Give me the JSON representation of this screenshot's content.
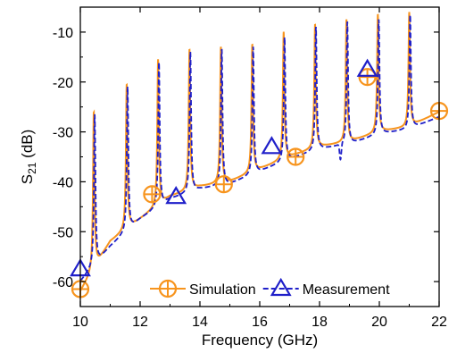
{
  "chart_data": {
    "type": "line",
    "title": "",
    "xlabel": "Frequency (GHz)",
    "ylabel_main": "S",
    "ylabel_sub": "21",
    "ylabel_unit": " (dB)",
    "xlim": [
      10,
      22
    ],
    "ylim": [
      -65,
      -5
    ],
    "xticks": [
      10,
      12,
      14,
      16,
      18,
      20,
      22
    ],
    "yticks": [
      -60,
      -50,
      -40,
      -30,
      -20,
      -10
    ],
    "xtick_labels": [
      "10",
      "12",
      "14",
      "16",
      "18",
      "20",
      "22"
    ],
    "ytick_labels": [
      "-60",
      "-50",
      "-40",
      "-30",
      "-20",
      "-10"
    ],
    "grid": false,
    "legend_position": "bottom-right",
    "series": [
      {
        "name": "Simulation",
        "color": "#f7941d",
        "line_style": "solid",
        "marker": "circle-plus",
        "curve_params": {
          "base_points": [
            [
              10,
              -62
            ],
            [
              11,
              -52
            ],
            [
              12,
              -47.5
            ],
            [
              13,
              -43
            ],
            [
              14,
              -41
            ],
            [
              15,
              -40
            ],
            [
              16,
              -37.5
            ],
            [
              17,
              -35
            ],
            [
              18,
              -33
            ],
            [
              19,
              -32
            ],
            [
              20,
              -30
            ],
            [
              21,
              -29
            ],
            [
              22,
              -26
            ]
          ],
          "peaks": [
            [
              10.45,
              -26
            ],
            [
              11.55,
              -20.5
            ],
            [
              12.6,
              -15.5
            ],
            [
              13.65,
              -13.5
            ],
            [
              14.7,
              -13
            ],
            [
              15.75,
              -12.5
            ],
            [
              16.8,
              -10
            ],
            [
              17.85,
              -8.5
            ],
            [
              18.9,
              -7.5
            ],
            [
              19.95,
              -6.5
            ],
            [
              21.0,
              -6
            ]
          ],
          "peak_width": 0.09
        },
        "markers": [
          [
            10,
            -61.5
          ],
          [
            12.4,
            -42.5
          ],
          [
            14.8,
            -40.5
          ],
          [
            17.2,
            -35
          ],
          [
            19.6,
            -19
          ],
          [
            22,
            -25.8
          ]
        ]
      },
      {
        "name": "Measurement",
        "color": "#1f1fc9",
        "line_style": "dashed",
        "marker": "triangle",
        "curve_params": {
          "base_points": [
            [
              10,
              -60
            ],
            [
              11,
              -53
            ],
            [
              12,
              -47.5
            ],
            [
              13,
              -43.5
            ],
            [
              14,
              -41.5
            ],
            [
              15,
              -40.5
            ],
            [
              16,
              -38
            ],
            [
              17,
              -35.5
            ],
            [
              18,
              -33.5
            ],
            [
              19,
              -32.5
            ],
            [
              20,
              -30.5
            ],
            [
              21,
              -29.5
            ],
            [
              22,
              -27
            ]
          ],
          "peaks": [
            [
              10.48,
              -26.5
            ],
            [
              11.58,
              -21
            ],
            [
              12.63,
              -16
            ],
            [
              13.68,
              -14
            ],
            [
              14.73,
              -13.5
            ],
            [
              15.78,
              -13
            ],
            [
              16.83,
              -11
            ],
            [
              17.88,
              -9
            ],
            [
              18.93,
              -8
            ],
            [
              19.98,
              -7.5
            ],
            [
              21.03,
              -6.5
            ]
          ],
          "peak_width": 0.09,
          "extra_points": [
            [
              18.7,
              -36
            ]
          ]
        },
        "markers": [
          [
            10,
            -57.5
          ],
          [
            13.2,
            -43
          ],
          [
            16.4,
            -33
          ],
          [
            19.6,
            -17.5
          ]
        ]
      }
    ]
  }
}
